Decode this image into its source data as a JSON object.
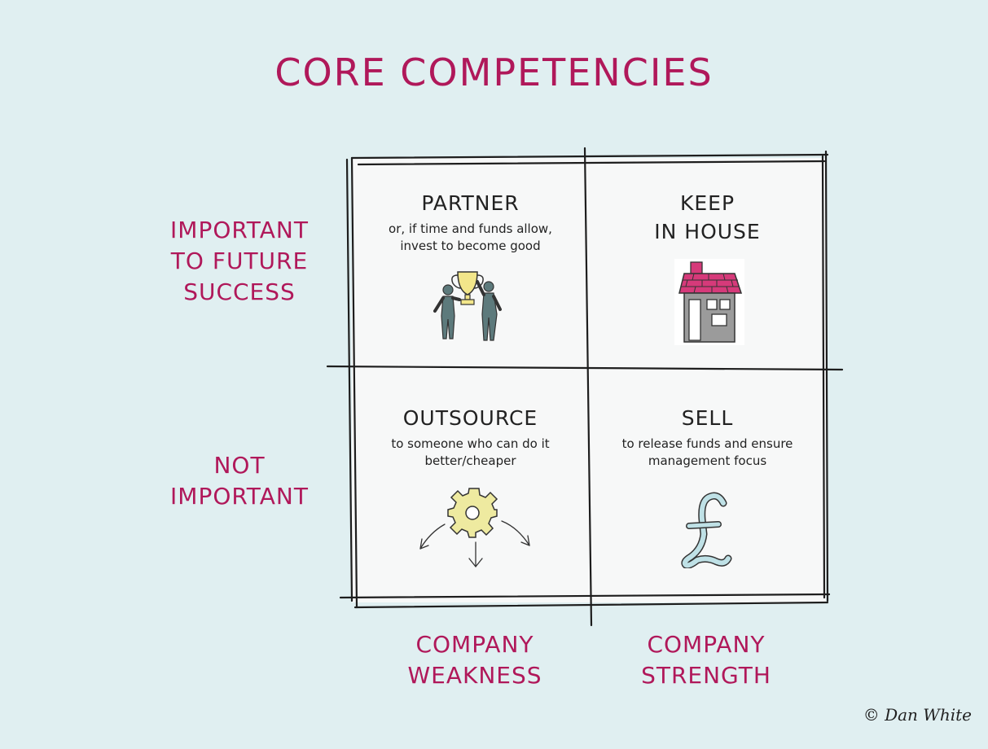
{
  "title": "CORE COMPETENCIES",
  "rows": [
    {
      "lines": [
        "IMPORTANT",
        "TO FUTURE",
        "SUCCESS"
      ]
    },
    {
      "lines": [
        "NOT",
        "IMPORTANT"
      ]
    }
  ],
  "columns": [
    {
      "lines": [
        "COMPANY",
        "WEAKNESS"
      ]
    },
    {
      "lines": [
        "COMPANY",
        "STRENGTH"
      ]
    }
  ],
  "quadrants": {
    "partner": {
      "heading": "PARTNER",
      "desc": [
        "or, if time and funds allow,",
        "invest to become good"
      ],
      "icon": "trophy-people-icon"
    },
    "keep": {
      "heading": [
        "KEEP",
        "IN HOUSE"
      ],
      "icon": "house-icon"
    },
    "outsource": {
      "heading": "OUTSOURCE",
      "desc": [
        "to someone who can do it",
        "better/cheaper"
      ],
      "icon": "gear-arrows-icon"
    },
    "sell": {
      "heading": "SELL",
      "desc": [
        "to release funds and ensure",
        "management focus"
      ],
      "icon": "pound-icon"
    }
  },
  "credit": "© Dan White",
  "colors": {
    "accent": "#b0185a",
    "background": "#e0eff1",
    "ink": "#222222"
  }
}
